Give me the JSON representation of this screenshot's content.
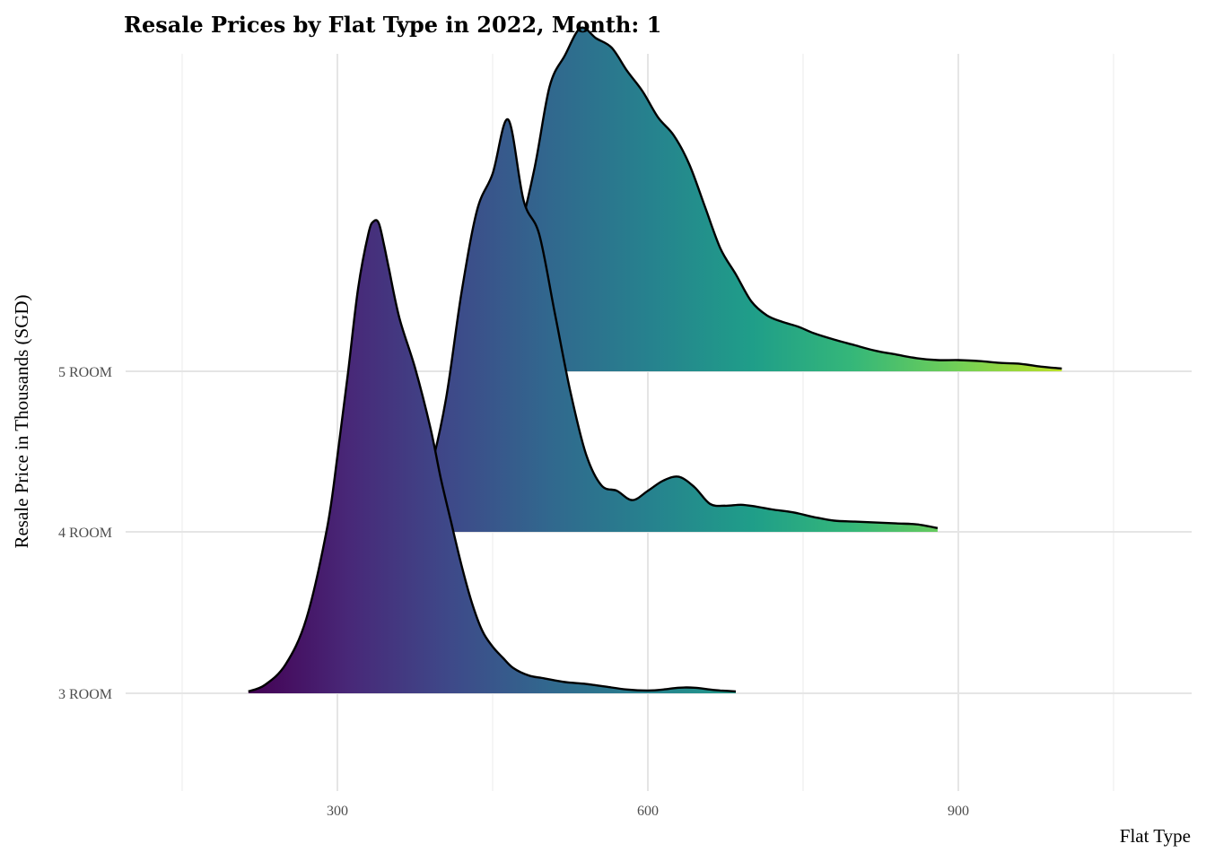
{
  "chart_data": {
    "type": "ridgeline",
    "title": "Resale Prices by Flat Type in 2022, Month: 1",
    "xlabel": "Flat Type",
    "ylabel": "Resale Price in Thousands (SGD)",
    "xlim": [
      150,
      1100
    ],
    "x_ticks": [
      300,
      600,
      900
    ],
    "x_minor_ticks": [
      150,
      450,
      750,
      1050
    ],
    "categories": [
      "3 ROOM",
      "4 ROOM",
      "5 ROOM"
    ],
    "fill_scale": "viridis",
    "grid": true,
    "legend": "none",
    "series": [
      {
        "name": "3 ROOM",
        "x": [
          214,
          230,
          250,
          270,
          290,
          300,
          310,
          320,
          330,
          335,
          340,
          345,
          350,
          360,
          375,
          390,
          400,
          410,
          420,
          430,
          440,
          450,
          460,
          470,
          485,
          500,
          520,
          540,
          560,
          580,
          600,
          615,
          630,
          645,
          660,
          670,
          685
        ],
        "density": [
          0.02,
          0.09,
          0.31,
          0.8,
          1.77,
          2.54,
          3.41,
          4.34,
          4.93,
          5.06,
          5.04,
          4.81,
          4.54,
          4.02,
          3.49,
          2.84,
          2.3,
          1.83,
          1.37,
          0.97,
          0.67,
          0.5,
          0.38,
          0.27,
          0.19,
          0.16,
          0.12,
          0.1,
          0.07,
          0.04,
          0.03,
          0.04,
          0.06,
          0.06,
          0.04,
          0.03,
          0.02
        ]
      },
      {
        "name": "4 ROOM",
        "x": [
          375,
          390,
          405,
          420,
          435,
          450,
          465,
          480,
          495,
          510,
          525,
          540,
          555,
          570,
          585,
          600,
          615,
          630,
          645,
          660,
          675,
          690,
          705,
          720,
          740,
          760,
          780,
          800,
          820,
          840,
          860,
          880
        ],
        "density": [
          0.2,
          0.67,
          1.43,
          2.57,
          3.45,
          3.84,
          4.42,
          3.55,
          3.19,
          2.35,
          1.51,
          0.84,
          0.5,
          0.44,
          0.34,
          0.44,
          0.55,
          0.59,
          0.48,
          0.3,
          0.28,
          0.29,
          0.27,
          0.24,
          0.21,
          0.16,
          0.12,
          0.11,
          0.1,
          0.09,
          0.08,
          0.04
        ]
      },
      {
        "name": "5 ROOM",
        "x": [
          445,
          470,
          490,
          505,
          520,
          535,
          550,
          565,
          580,
          595,
          610,
          625,
          640,
          655,
          670,
          685,
          700,
          715,
          730,
          745,
          760,
          780,
          800,
          820,
          840,
          860,
          880,
          900,
          920,
          940,
          960,
          980,
          1000
        ],
        "density": [
          0.2,
          1.21,
          2.15,
          3.05,
          3.39,
          3.68,
          3.57,
          3.47,
          3.22,
          3.0,
          2.72,
          2.53,
          2.22,
          1.77,
          1.32,
          1.04,
          0.75,
          0.6,
          0.53,
          0.48,
          0.41,
          0.34,
          0.28,
          0.22,
          0.18,
          0.14,
          0.12,
          0.12,
          0.11,
          0.09,
          0.08,
          0.05,
          0.03
        ]
      }
    ]
  }
}
